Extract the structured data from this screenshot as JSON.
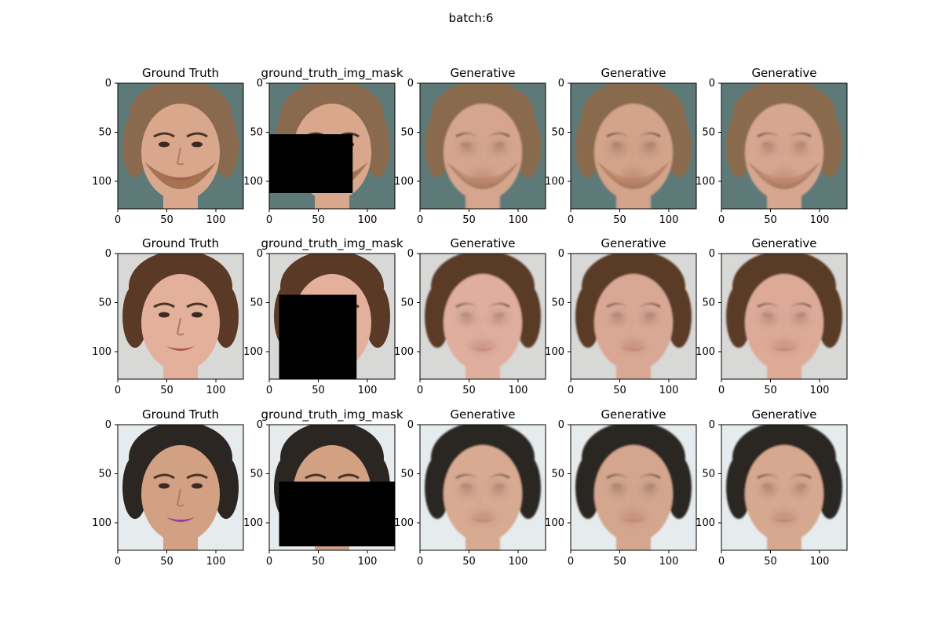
{
  "figure": {
    "title": "batch:6"
  },
  "chart_data": {
    "type": "image-grid",
    "title": "batch:6",
    "rows": 3,
    "cols": 5,
    "x_ticks": [
      0,
      50,
      100
    ],
    "y_ticks": [
      0,
      50,
      100
    ],
    "xlim": [
      0,
      128
    ],
    "ylim": [
      128,
      0
    ],
    "panels": [
      [
        {
          "title": "Ground Truth",
          "kind": "face",
          "skin": "#d9a88c",
          "hair": "#8a6a4e",
          "bg": "#5e7a78",
          "beard": "#9a6a48",
          "mask": null
        },
        {
          "title": "ground_truth_img_mask",
          "kind": "masked",
          "skin": "#d9a88c",
          "hair": "#8a6a4e",
          "bg": "#5e7a78",
          "beard": "#9a6a48",
          "mask": [
            0,
            52,
            85,
            112
          ]
        },
        {
          "title": "Generative",
          "kind": "generated",
          "skin": "#d5a58e",
          "hair": "#8a6a4e",
          "bg": "#5e7a78",
          "beard": "#9a6a48",
          "mask": null
        },
        {
          "title": "Generative",
          "kind": "generated",
          "skin": "#d3a38a",
          "hair": "#8a6a4e",
          "bg": "#5e7a78",
          "beard": "#9a6a48",
          "mask": null
        },
        {
          "title": "Generative",
          "kind": "generated",
          "skin": "#d7a690",
          "hair": "#8a6a4e",
          "bg": "#5e7a78",
          "beard": "#9a6a48",
          "mask": null
        }
      ],
      [
        {
          "title": "Ground Truth",
          "kind": "face",
          "skin": "#e3b09c",
          "hair": "#5a3a26",
          "bg": "#d8d8d6",
          "beard": null,
          "mask": null
        },
        {
          "title": "ground_truth_img_mask",
          "kind": "masked",
          "skin": "#e3b09c",
          "hair": "#5a3a26",
          "bg": "#d8d8d6",
          "beard": null,
          "mask": [
            10,
            42,
            89,
            128
          ]
        },
        {
          "title": "Generative",
          "kind": "generated",
          "skin": "#dfae9c",
          "hair": "#5a3a26",
          "bg": "#d8d8d6",
          "beard": null,
          "mask": null
        },
        {
          "title": "Generative",
          "kind": "generated",
          "skin": "#d9a895",
          "hair": "#5a3a26",
          "bg": "#d8d8d6",
          "beard": null,
          "mask": null
        },
        {
          "title": "Generative",
          "kind": "generated",
          "skin": "#ddaa98",
          "hair": "#5a3a26",
          "bg": "#d8d8d6",
          "beard": null,
          "mask": null
        }
      ],
      [
        {
          "title": "Ground Truth",
          "kind": "face",
          "skin": "#d2a082",
          "hair": "#2b2622",
          "bg": "#e6ecee",
          "beard": null,
          "mask": null
        },
        {
          "title": "ground_truth_img_mask",
          "kind": "masked",
          "skin": "#d2a082",
          "hair": "#2b2622",
          "bg": "#e6ecee",
          "beard": null,
          "mask": [
            10,
            58,
            128,
            124
          ]
        },
        {
          "title": "Generative",
          "kind": "generated",
          "skin": "#d8aa92",
          "hair": "#2b2622",
          "bg": "#e6ecee",
          "beard": null,
          "mask": null
        },
        {
          "title": "Generative",
          "kind": "generated",
          "skin": "#d4a68e",
          "hair": "#2b2622",
          "bg": "#e6ecee",
          "beard": null,
          "mask": null
        },
        {
          "title": "Generative",
          "kind": "generated",
          "skin": "#d6a890",
          "hair": "#2b2622",
          "bg": "#e6ecee",
          "beard": null,
          "mask": null
        }
      ]
    ]
  }
}
